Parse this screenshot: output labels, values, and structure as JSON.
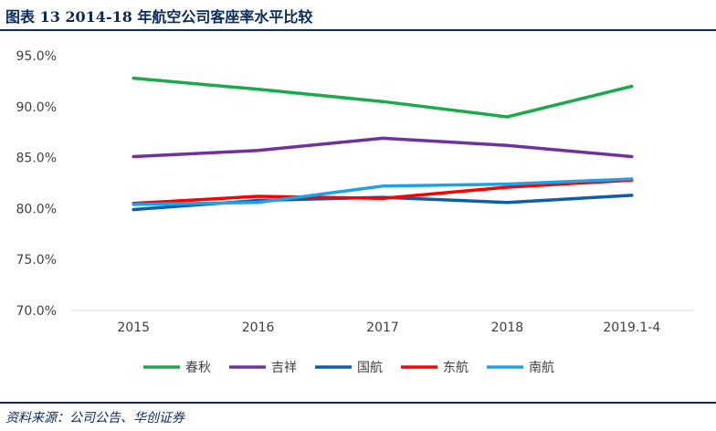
{
  "header": {
    "title": "图表 13   2014-18 年航空公司客座率水平比较"
  },
  "source": {
    "text": "资料来源：公司公告、华创证券"
  },
  "chart_data": {
    "type": "line",
    "title": "",
    "xlabel": "",
    "ylabel": "",
    "categories": [
      "2015",
      "2016",
      "2017",
      "2018",
      "2019.1-4"
    ],
    "ylim": [
      70.0,
      95.0
    ],
    "yticks": [
      "95.0%",
      "90.0%",
      "85.0%",
      "80.0%",
      "75.0%",
      "70.0%"
    ],
    "ytick_values": [
      95,
      90,
      85,
      80,
      75,
      70
    ],
    "grid": false,
    "legend_position": "bottom",
    "series": [
      {
        "name": "春秋",
        "color": "#1aaa4b",
        "values": [
          92.8,
          91.7,
          90.5,
          89.0,
          92.0
        ]
      },
      {
        "name": "吉祥",
        "color": "#7030a0",
        "values": [
          85.1,
          85.7,
          86.9,
          86.2,
          85.1
        ]
      },
      {
        "name": "国航",
        "color": "#0b5fa8",
        "values": [
          79.9,
          80.8,
          81.1,
          80.6,
          81.3
        ]
      },
      {
        "name": "东航",
        "color": "#ff0000",
        "values": [
          80.5,
          81.2,
          81.0,
          82.1,
          82.8
        ]
      },
      {
        "name": "南航",
        "color": "#1aa3e8",
        "values": [
          80.4,
          80.6,
          82.2,
          82.4,
          82.9
        ]
      }
    ]
  }
}
